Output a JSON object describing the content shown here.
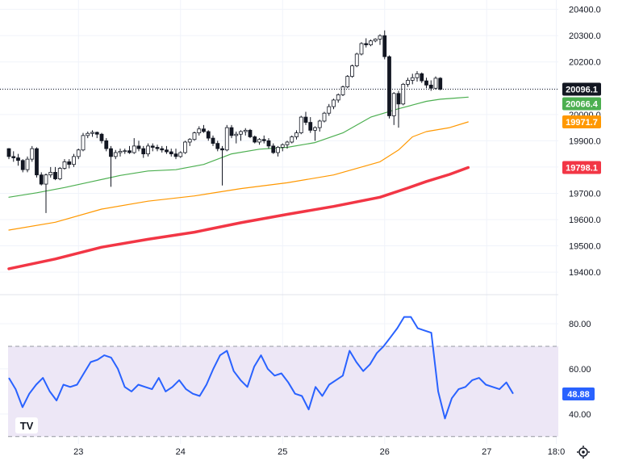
{
  "chart_data": [
    {
      "type": "candlestick",
      "ylim": [
        19345,
        20405
      ],
      "price_ticks": [
        20400,
        20300,
        20200,
        20100,
        20000,
        19900,
        19800,
        19700,
        19600,
        19500,
        19400
      ],
      "x_ticks": [
        {
          "label": "23",
          "idx": 15
        },
        {
          "label": "24",
          "idx": 37
        },
        {
          "label": "25",
          "idx": 59
        },
        {
          "label": "26",
          "idx": 81
        },
        {
          "label": "27",
          "idx": 103
        },
        {
          "label": "18:0",
          "idx": 118
        }
      ],
      "last_price": 20096.1,
      "ohlc": [
        [
          19870,
          19872,
          19830,
          19840
        ],
        [
          19840,
          19860,
          19820,
          19835
        ],
        [
          19835,
          19850,
          19805,
          19825
        ],
        [
          19825,
          19830,
          19780,
          19790
        ],
        [
          19790,
          19840,
          19780,
          19830
        ],
        [
          19830,
          19880,
          19820,
          19870
        ],
        [
          19870,
          19875,
          19760,
          19770
        ],
        [
          19770,
          19780,
          19730,
          19735
        ],
        [
          19735,
          19775,
          19625,
          19770
        ],
        [
          19770,
          19800,
          19760,
          19780
        ],
        [
          19780,
          19800,
          19750,
          19755
        ],
        [
          19755,
          19800,
          19750,
          19795
        ],
        [
          19795,
          19830,
          19790,
          19820
        ],
        [
          19820,
          19830,
          19795,
          19810
        ],
        [
          19810,
          19850,
          19800,
          19840
        ],
        [
          19840,
          19870,
          19830,
          19865
        ],
        [
          19865,
          19930,
          19860,
          19920
        ],
        [
          19920,
          19935,
          19910,
          19928
        ],
        [
          19928,
          19940,
          19915,
          19932
        ],
        [
          19932,
          19935,
          19910,
          19925
        ],
        [
          19925,
          19930,
          19890,
          19900
        ],
        [
          19900,
          19910,
          19860,
          19870
        ],
        [
          19870,
          19880,
          19725,
          19840
        ],
        [
          19840,
          19865,
          19830,
          19855
        ],
        [
          19855,
          19870,
          19840,
          19860
        ],
        [
          19860,
          19870,
          19850,
          19862
        ],
        [
          19862,
          19880,
          19850,
          19855
        ],
        [
          19855,
          19910,
          19850,
          19880
        ],
        [
          19880,
          19900,
          19860,
          19870
        ],
        [
          19870,
          19880,
          19835,
          19850
        ],
        [
          19850,
          19890,
          19840,
          19880
        ],
        [
          19880,
          19890,
          19860,
          19875
        ],
        [
          19875,
          19885,
          19860,
          19870
        ],
        [
          19870,
          19880,
          19855,
          19865
        ],
        [
          19865,
          19880,
          19850,
          19858
        ],
        [
          19858,
          19870,
          19840,
          19850
        ],
        [
          19850,
          19870,
          19830,
          19840
        ],
        [
          19840,
          19860,
          19835,
          19855
        ],
        [
          19855,
          19900,
          19850,
          19895
        ],
        [
          19895,
          19910,
          19880,
          19905
        ],
        [
          19905,
          19935,
          19900,
          19930
        ],
        [
          19930,
          19955,
          19920,
          19945
        ],
        [
          19945,
          19960,
          19930,
          19935
        ],
        [
          19935,
          19940,
          19900,
          19910
        ],
        [
          19910,
          19920,
          19880,
          19890
        ],
        [
          19890,
          19900,
          19860,
          19870
        ],
        [
          19870,
          19880,
          19730,
          19865
        ],
        [
          19865,
          19960,
          19860,
          19950
        ],
        [
          19950,
          19960,
          19910,
          19920
        ],
        [
          19920,
          19935,
          19890,
          19925
        ],
        [
          19925,
          19940,
          19900,
          19935
        ],
        [
          19935,
          19948,
          19920,
          19940
        ],
        [
          19940,
          19945,
          19910,
          19915
        ],
        [
          19915,
          19920,
          19890,
          19895
        ],
        [
          19895,
          19910,
          19885,
          19905
        ],
        [
          19905,
          19920,
          19890,
          19900
        ],
        [
          19900,
          19910,
          19870,
          19880
        ],
        [
          19880,
          19890,
          19850,
          19855
        ],
        [
          19855,
          19880,
          19840,
          19875
        ],
        [
          19875,
          19890,
          19860,
          19885
        ],
        [
          19885,
          19900,
          19870,
          19895
        ],
        [
          19895,
          19920,
          19890,
          19915
        ],
        [
          19915,
          19940,
          19905,
          19930
        ],
        [
          19930,
          19995,
          19925,
          19990
        ],
        [
          19990,
          20010,
          19960,
          19970
        ],
        [
          19970,
          19990,
          19930,
          19940
        ],
        [
          19940,
          19955,
          19900,
          19950
        ],
        [
          19950,
          19980,
          19935,
          19975
        ],
        [
          19975,
          20010,
          19970,
          20005
        ],
        [
          20005,
          20040,
          19995,
          20030
        ],
        [
          20030,
          20060,
          20020,
          20055
        ],
        [
          20055,
          20080,
          20045,
          20075
        ],
        [
          20075,
          20110,
          20070,
          20105
        ],
        [
          20105,
          20150,
          20100,
          20145
        ],
        [
          20145,
          20190,
          20140,
          20185
        ],
        [
          20185,
          20235,
          20180,
          20230
        ],
        [
          20230,
          20275,
          20225,
          20270
        ],
        [
          20270,
          20290,
          20255,
          20265
        ],
        [
          20265,
          20285,
          20260,
          20280
        ],
        [
          20280,
          20290,
          20275,
          20287
        ],
        [
          20287,
          20305,
          20265,
          20300
        ],
        [
          20300,
          20320,
          20210,
          20220
        ],
        [
          20220,
          20225,
          19985,
          19995
        ],
        [
          19995,
          20085,
          19960,
          20080
        ],
        [
          20080,
          20090,
          19950,
          20040
        ],
        [
          20040,
          20120,
          20035,
          20115
        ],
        [
          20115,
          20140,
          20105,
          20130
        ],
        [
          20130,
          20155,
          20115,
          20140
        ],
        [
          20140,
          20165,
          20125,
          20155
        ],
        [
          20155,
          20160,
          20120,
          20128
        ],
        [
          20128,
          20140,
          20100,
          20112
        ],
        [
          20112,
          20130,
          20090,
          20100
        ],
        [
          20100,
          20145,
          20095,
          20138
        ],
        [
          20138,
          20142,
          20092,
          20096
        ]
      ],
      "ma_green": [
        [
          0,
          19685
        ],
        [
          6,
          19702
        ],
        [
          12,
          19722
        ],
        [
          18,
          19745
        ],
        [
          24,
          19768
        ],
        [
          30,
          19785
        ],
        [
          36,
          19790
        ],
        [
          42,
          19810
        ],
        [
          48,
          19850
        ],
        [
          54,
          19868
        ],
        [
          60,
          19875
        ],
        [
          66,
          19893
        ],
        [
          72,
          19930
        ],
        [
          78,
          19990
        ],
        [
          84,
          20022
        ],
        [
          87,
          20036
        ],
        [
          90,
          20050
        ],
        [
          93,
          20058
        ],
        [
          96,
          20062
        ],
        [
          99,
          20066
        ]
      ],
      "ma_orange": [
        [
          0,
          19560
        ],
        [
          10,
          19590
        ],
        [
          20,
          19640
        ],
        [
          30,
          19670
        ],
        [
          40,
          19690
        ],
        [
          50,
          19718
        ],
        [
          60,
          19740
        ],
        [
          70,
          19770
        ],
        [
          80,
          19820
        ],
        [
          84,
          19865
        ],
        [
          87,
          19915
        ],
        [
          90,
          19935
        ],
        [
          95,
          19950
        ],
        [
          99,
          19971.7
        ]
      ],
      "ma_red": [
        [
          0,
          19413
        ],
        [
          10,
          19450
        ],
        [
          20,
          19495
        ],
        [
          30,
          19525
        ],
        [
          40,
          19552
        ],
        [
          50,
          19588
        ],
        [
          60,
          19620
        ],
        [
          70,
          19650
        ],
        [
          80,
          19685
        ],
        [
          86,
          19720
        ],
        [
          90,
          19745
        ],
        [
          95,
          19772
        ],
        [
          99,
          19798.1
        ]
      ],
      "badges": [
        {
          "label": "20096.1",
          "value": 20096.1,
          "color": "#131722"
        },
        {
          "label": "20066.4",
          "value": 20066.4,
          "color": "#4caf50"
        },
        {
          "label": "19971.7",
          "value": 19971.7,
          "color": "#ff9800"
        },
        {
          "label": "19798.1",
          "value": 19798.1,
          "color": "#f23645"
        }
      ],
      "colors": {
        "up": "#ffffff",
        "down": "#131722",
        "wick": "#131722",
        "green": "#4caf50",
        "orange": "#ff9800",
        "red": "#f23645",
        "grid": "#f0f3fa"
      }
    },
    {
      "type": "line",
      "ylim": [
        28.5,
        87.5
      ],
      "ticks": [
        80,
        60,
        40
      ],
      "band": [
        70,
        30
      ],
      "last_value": 48.88,
      "values": [
        56,
        51,
        43,
        49,
        53,
        56,
        50,
        46,
        53,
        52,
        53,
        58,
        63,
        64,
        66,
        65,
        60,
        52,
        50,
        53,
        52,
        51,
        56,
        50,
        52,
        55,
        51,
        49,
        48,
        53,
        60,
        66,
        68,
        59,
        55,
        52,
        61,
        66,
        60,
        57,
        58,
        54,
        49,
        48,
        42,
        52,
        48,
        53,
        55,
        57,
        68,
        63,
        59,
        62,
        67,
        70,
        74,
        78,
        83,
        83,
        78,
        77,
        76,
        50,
        38,
        47,
        51,
        52,
        55,
        56,
        53,
        52,
        51,
        54,
        49
      ],
      "badge": {
        "label": "48.88",
        "color": "#2962ff"
      },
      "colors": {
        "line": "#2962ff",
        "band_fill": "#ede7f6",
        "band_edge": "#9598a1"
      }
    }
  ],
  "logo": "TV"
}
